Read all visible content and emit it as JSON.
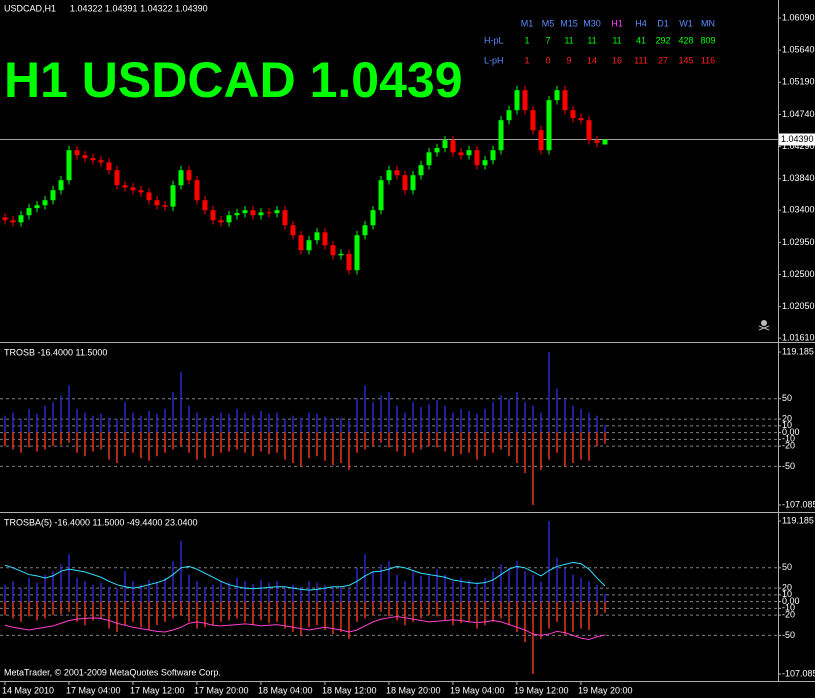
{
  "chart_data": [
    {
      "type": "candlestick",
      "title": "USDCAD,H1",
      "subtitle": "1.04322 1.04391 1.04322 1.04390",
      "annotation": "H1 USDCAD 1.0439",
      "up_color": "#00ff00",
      "down_color": "#ff0000",
      "categories": [
        "14 May 2010",
        null,
        null,
        null,
        null,
        null,
        null,
        null,
        "17 May 04:00",
        null,
        null,
        null,
        null,
        null,
        null,
        null,
        "17 May 12:00",
        null,
        null,
        null,
        null,
        null,
        null,
        null,
        "17 May 20:00",
        null,
        null,
        null,
        null,
        null,
        null,
        null,
        "18 May 04:00",
        null,
        null,
        null,
        null,
        null,
        null,
        null,
        "18 May 12:00",
        null,
        null,
        null,
        null,
        null,
        null,
        null,
        "18 May 20:00",
        null,
        null,
        null,
        null,
        null,
        null,
        null,
        "19 May 04:00",
        null,
        null,
        null,
        null,
        null,
        null,
        null,
        "19 May 12:00",
        null,
        null,
        null,
        null,
        null,
        null,
        null,
        "19 May 20:00",
        null,
        null,
        null
      ],
      "open": [
        1.033,
        1.0326,
        1.0323,
        1.0333,
        1.0343,
        1.0347,
        1.0354,
        1.0368,
        1.0382,
        1.0424,
        1.0417,
        1.0413,
        1.041,
        1.0407,
        1.0396,
        1.0375,
        1.0372,
        1.0368,
        1.0365,
        1.0354,
        1.0347,
        1.0345,
        1.0375,
        1.0396,
        1.0382,
        1.0354,
        1.034,
        1.0326,
        1.0323,
        1.0333,
        1.0336,
        1.034,
        1.0333,
        1.0337,
        1.0336,
        1.034,
        1.0319,
        1.0305,
        1.0284,
        1.0298,
        1.0309,
        1.0291,
        1.0277,
        1.0279,
        1.0256,
        1.0305,
        1.0319,
        1.034,
        1.0382,
        1.0396,
        1.0389,
        1.0368,
        1.0389,
        1.0403,
        1.0421,
        1.0427,
        1.0438,
        1.0421,
        1.0417,
        1.0424,
        1.0403,
        1.041,
        1.0424,
        1.0466,
        1.048,
        1.0508,
        1.048,
        1.0452,
        1.0424,
        1.0494,
        1.0508,
        1.048,
        1.0469,
        1.0466,
        1.0438,
        1.0432
      ],
      "high": [
        1.0336,
        1.0332,
        1.0339,
        1.0349,
        1.0353,
        1.036,
        1.0374,
        1.0388,
        1.043,
        1.043,
        1.0423,
        1.0419,
        1.0416,
        1.0413,
        1.0402,
        1.0381,
        1.0378,
        1.0374,
        1.0371,
        1.036,
        1.0353,
        1.0381,
        1.0402,
        1.0402,
        1.0388,
        1.036,
        1.0346,
        1.0332,
        1.0339,
        1.0342,
        1.0346,
        1.0346,
        1.0343,
        1.0343,
        1.0346,
        1.0346,
        1.0325,
        1.0311,
        1.0304,
        1.0315,
        1.0315,
        1.0297,
        1.0285,
        1.0285,
        1.0311,
        1.0325,
        1.0346,
        1.0388,
        1.0402,
        1.0402,
        1.0395,
        1.0395,
        1.0409,
        1.0427,
        1.0433,
        1.0444,
        1.0444,
        1.0427,
        1.043,
        1.043,
        1.0416,
        1.043,
        1.0472,
        1.0486,
        1.0514,
        1.0514,
        1.0486,
        1.0458,
        1.05,
        1.0514,
        1.0514,
        1.0486,
        1.0475,
        1.0472,
        1.0444,
        1.0439
      ],
      "low": [
        1.032,
        1.0317,
        1.0317,
        1.0327,
        1.0337,
        1.0341,
        1.0348,
        1.0362,
        1.0376,
        1.0411,
        1.0407,
        1.0404,
        1.0401,
        1.039,
        1.0369,
        1.0366,
        1.0362,
        1.0359,
        1.0348,
        1.0341,
        1.0339,
        1.0339,
        1.0369,
        1.0376,
        1.0348,
        1.0334,
        1.032,
        1.0317,
        1.0317,
        1.0327,
        1.033,
        1.0327,
        1.0327,
        1.033,
        1.033,
        1.0313,
        1.0299,
        1.0278,
        1.0278,
        1.0292,
        1.0285,
        1.0271,
        1.0271,
        1.025,
        1.025,
        1.0299,
        1.0313,
        1.0334,
        1.0376,
        1.0383,
        1.0362,
        1.0362,
        1.0383,
        1.0397,
        1.0415,
        1.0421,
        1.0415,
        1.0411,
        1.0411,
        1.0397,
        1.0397,
        1.0404,
        1.0418,
        1.046,
        1.0474,
        1.0474,
        1.0446,
        1.0418,
        1.0418,
        1.0488,
        1.0474,
        1.0463,
        1.046,
        1.0432,
        1.0428,
        1.0432
      ],
      "close": [
        1.0326,
        1.0323,
        1.0333,
        1.0343,
        1.0347,
        1.0354,
        1.0368,
        1.0382,
        1.0424,
        1.0417,
        1.0413,
        1.041,
        1.0407,
        1.0396,
        1.0375,
        1.0372,
        1.0368,
        1.0365,
        1.0354,
        1.0347,
        1.0345,
        1.0375,
        1.0396,
        1.0382,
        1.0354,
        1.034,
        1.0326,
        1.0323,
        1.0333,
        1.0336,
        1.034,
        1.0333,
        1.0337,
        1.0336,
        1.034,
        1.0319,
        1.0305,
        1.0284,
        1.0298,
        1.0309,
        1.0291,
        1.0277,
        1.0279,
        1.0256,
        1.0305,
        1.0319,
        1.034,
        1.0382,
        1.0396,
        1.0389,
        1.0368,
        1.0389,
        1.0403,
        1.0421,
        1.0427,
        1.0438,
        1.0421,
        1.0417,
        1.0424,
        1.0403,
        1.041,
        1.0424,
        1.0466,
        1.048,
        1.0508,
        1.048,
        1.0452,
        1.0424,
        1.0494,
        1.0508,
        1.048,
        1.0469,
        1.0466,
        1.0438,
        1.0434,
        1.0439
      ],
      "ylim": [
        1.0157,
        1.063
      ],
      "yticks": [
        {
          "value": 1.0609,
          "label": "1.06090"
        },
        {
          "value": 1.0564,
          "label": "1.05640"
        },
        {
          "value": 1.0519,
          "label": "1.05190"
        },
        {
          "value": 1.0474,
          "label": "1.04740"
        },
        {
          "value": 1.0429,
          "label": "1.04290"
        },
        {
          "value": 1.0384,
          "label": "1.03840"
        },
        {
          "value": 1.034,
          "label": "1.03400"
        },
        {
          "value": 1.0295,
          "label": "1.02950"
        },
        {
          "value": 1.025,
          "label": "1.02500"
        },
        {
          "value": 1.0205,
          "label": "1.02050"
        },
        {
          "value": 1.0161,
          "label": "1.01610"
        }
      ],
      "last_price": {
        "value": 1.0439,
        "label": "1.04390"
      },
      "table": {
        "columns": [
          "M1",
          "M5",
          "M15",
          "M30",
          "H1",
          "H4",
          "D1",
          "W1",
          "MN"
        ],
        "rows": [
          {
            "label": "H-pL",
            "color": "#00ff00",
            "values": [
              1,
              7,
              11,
              11,
              11,
              41,
              292,
              428,
              809
            ]
          },
          {
            "label": "L-pH",
            "color": "#ff2020",
            "values": [
              1,
              0,
              9,
              14,
              16,
              111,
              27,
              145,
              116
            ]
          }
        ]
      }
    },
    {
      "type": "bar",
      "title": "TROSB -16.4000 11.5000",
      "ylim": [
        -116,
        129.6
      ],
      "yticks": [
        119.185,
        50,
        20,
        10,
        {
          "value": 0,
          "label": "0.00"
        },
        -10,
        -20,
        -50,
        -107.085
      ],
      "grid": true,
      "series": [
        {
          "color": "#2828c8",
          "values": [
            25,
            30,
            20,
            35,
            28,
            40,
            45,
            55,
            70,
            35,
            30,
            25,
            28,
            22,
            20,
            45,
            30,
            25,
            32,
            28,
            35,
            60,
            90,
            40,
            30,
            22,
            25,
            30,
            28,
            35,
            30,
            26,
            32,
            28,
            30,
            20,
            25,
            22,
            30,
            28,
            24,
            20,
            22,
            18,
            50,
            70,
            45,
            55,
            60,
            40,
            30,
            45,
            38,
            42,
            48,
            40,
            30,
            35,
            32,
            28,
            35,
            45,
            55,
            50,
            60,
            45,
            40,
            30,
            119.185,
            65,
            50,
            40,
            35,
            30,
            25,
            11.5
          ]
        },
        {
          "color": "#e8341e",
          "values": [
            -20,
            -25,
            -30,
            -22,
            -28,
            -25,
            -20,
            -18,
            -15,
            -30,
            -35,
            -28,
            -25,
            -40,
            -45,
            -35,
            -30,
            -38,
            -42,
            -35,
            -30,
            -25,
            -20,
            -30,
            -40,
            -38,
            -35,
            -30,
            -28,
            -25,
            -30,
            -35,
            -28,
            -32,
            -30,
            -40,
            -45,
            -50,
            -38,
            -35,
            -42,
            -48,
            -45,
            -55,
            -30,
            -25,
            -20,
            -15,
            -22,
            -28,
            -35,
            -30,
            -25,
            -20,
            -22,
            -28,
            -35,
            -32,
            -30,
            -40,
            -35,
            -30,
            -25,
            -35,
            -45,
            -60,
            -107.085,
            -55,
            -40,
            -30,
            -50,
            -45,
            -40,
            -42,
            -20,
            -16.4
          ]
        }
      ]
    },
    {
      "type": "bar",
      "title": "TROSBA(5) -16.4000 11.5000 -49.4400 23.0400",
      "annotation": "MetaTrader, © 2001-2009 MetaQuotes Software Corp.",
      "ylim": [
        -116,
        129.6
      ],
      "yticks": [
        119.185,
        50,
        20,
        10,
        {
          "value": 0,
          "label": "0.00"
        },
        -10,
        -20,
        -50,
        -107.085
      ],
      "grid": true,
      "series": [
        {
          "color": "#2828c8",
          "values": [
            25,
            30,
            20,
            35,
            28,
            40,
            45,
            55,
            70,
            35,
            30,
            25,
            28,
            22,
            20,
            45,
            30,
            25,
            32,
            28,
            35,
            60,
            90,
            40,
            30,
            22,
            25,
            30,
            28,
            35,
            30,
            26,
            32,
            28,
            30,
            20,
            25,
            22,
            30,
            28,
            24,
            20,
            22,
            18,
            50,
            70,
            45,
            55,
            60,
            40,
            30,
            45,
            38,
            42,
            48,
            40,
            30,
            35,
            32,
            28,
            35,
            45,
            55,
            50,
            60,
            45,
            40,
            30,
            119.185,
            65,
            50,
            40,
            35,
            30,
            25,
            11.5
          ]
        },
        {
          "color": "#e8341e",
          "values": [
            -20,
            -25,
            -30,
            -22,
            -28,
            -25,
            -20,
            -18,
            -15,
            -30,
            -35,
            -28,
            -25,
            -40,
            -45,
            -35,
            -30,
            -38,
            -42,
            -35,
            -30,
            -25,
            -20,
            -30,
            -40,
            -38,
            -35,
            -30,
            -28,
            -25,
            -30,
            -35,
            -28,
            -32,
            -30,
            -40,
            -45,
            -50,
            -38,
            -35,
            -42,
            -48,
            -45,
            -55,
            -30,
            -25,
            -20,
            -15,
            -22,
            -28,
            -35,
            -30,
            -25,
            -20,
            -22,
            -28,
            -35,
            -32,
            -30,
            -40,
            -35,
            -30,
            -25,
            -35,
            -45,
            -60,
            -107.085,
            -55,
            -40,
            -30,
            -50,
            -45,
            -40,
            -42,
            -20,
            -16.4
          ]
        },
        {
          "type": "line",
          "color": "#33e0ff",
          "values": [
            54,
            50,
            45,
            40,
            38,
            35,
            38,
            45,
            48,
            46,
            44,
            40,
            36,
            30,
            25,
            22,
            20,
            22,
            25,
            28,
            32,
            40,
            50,
            52,
            48,
            42,
            36,
            30,
            25,
            22,
            20,
            19,
            20,
            21,
            22,
            22,
            20,
            18,
            17,
            18,
            20,
            22,
            22,
            24,
            30,
            38,
            44,
            45,
            48,
            52,
            50,
            46,
            42,
            40,
            38,
            36,
            32,
            30,
            28,
            27,
            28,
            32,
            40,
            48,
            52,
            50,
            44,
            38,
            46,
            52,
            55,
            58,
            56,
            48,
            35,
            23.04
          ]
        },
        {
          "type": "line",
          "color": "#ff40d0",
          "values": [
            -35,
            -38,
            -40,
            -42,
            -40,
            -38,
            -36,
            -32,
            -28,
            -26,
            -25,
            -24,
            -25,
            -28,
            -32,
            -35,
            -38,
            -40,
            -42,
            -44,
            -45,
            -42,
            -38,
            -32,
            -30,
            -32,
            -35,
            -36,
            -35,
            -34,
            -33,
            -34,
            -36,
            -35,
            -34,
            -36,
            -38,
            -40,
            -42,
            -40,
            -38,
            -40,
            -42,
            -45,
            -42,
            -36,
            -30,
            -26,
            -24,
            -22,
            -24,
            -26,
            -28,
            -30,
            -29,
            -28,
            -27,
            -28,
            -30,
            -31,
            -30,
            -28,
            -30,
            -34,
            -38,
            -42,
            -48,
            -50,
            -48,
            -44,
            -46,
            -50,
            -54,
            -56,
            -52,
            -49.44
          ]
        }
      ]
    }
  ]
}
